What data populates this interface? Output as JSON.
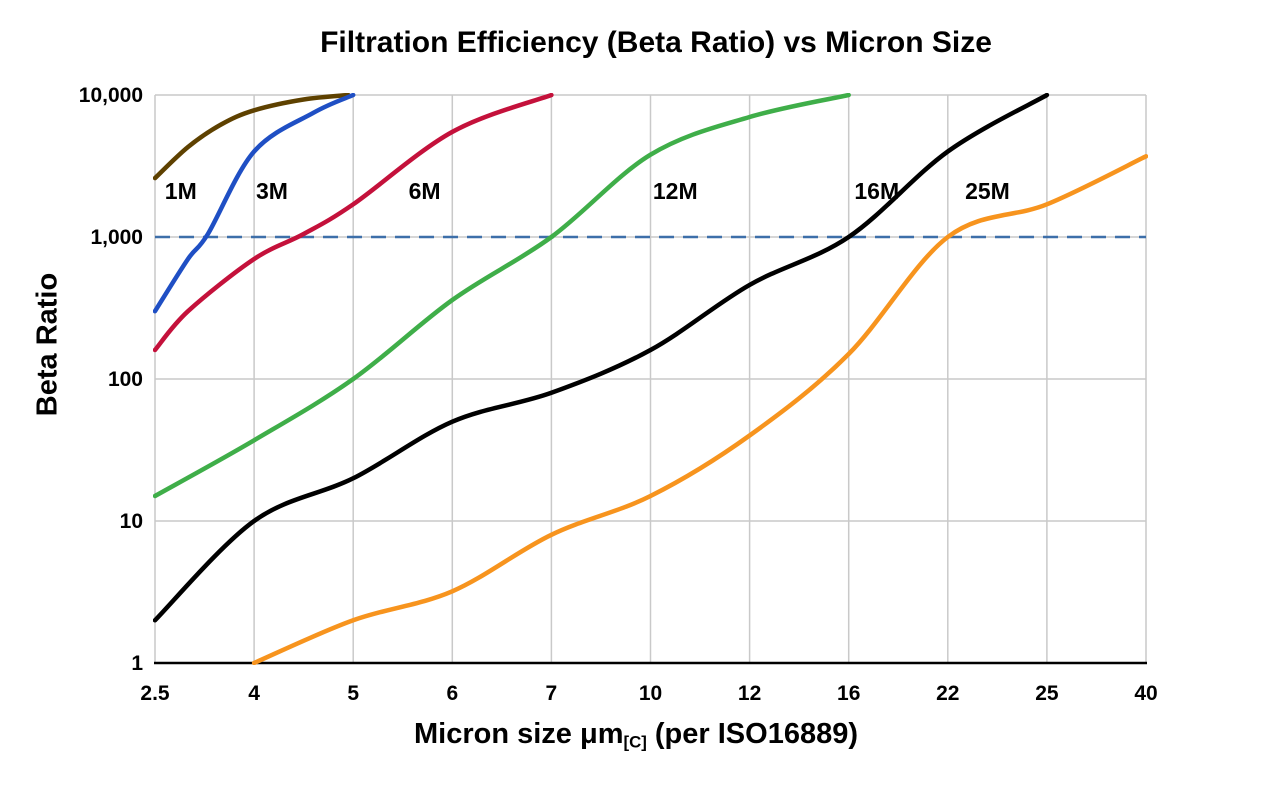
{
  "axes": {
    "x_label_main": "Micron size μm",
    "x_label_sub": "[C]",
    "x_label_suffix": " (per ISO16889)",
    "x_ticks": [
      "2.5",
      "4",
      "5",
      "6",
      "7",
      "10",
      "12",
      "16",
      "22",
      "25",
      "40"
    ],
    "y_ticks": [
      "1",
      "10",
      "100",
      "1,000",
      "10,000"
    ]
  },
  "chart_data": {
    "type": "line",
    "title": "Filtration Efficiency (Beta Ratio) vs Micron Size",
    "xlabel": "Micron size μm[C] (per ISO16889)",
    "ylabel": "Beta Ratio",
    "x_scale": "category-linear",
    "y_scale": "log",
    "x_categories": [
      2.5,
      4,
      5,
      6,
      7,
      10,
      12,
      16,
      22,
      25,
      40
    ],
    "ylim": [
      1,
      10000
    ],
    "grid": true,
    "grid_color": "#c9c9c9",
    "threshold_line": {
      "y": 1000,
      "style": "dashed",
      "color": "#3d6fa9"
    },
    "series": [
      {
        "name": "1M",
        "color": "#5e4100",
        "label_x": 2.89,
        "label_y": 2100,
        "points": [
          [
            2.5,
            2600
          ],
          [
            3,
            4300
          ],
          [
            3.5,
            6200
          ],
          [
            4,
            7800
          ],
          [
            4.5,
            9300
          ],
          [
            4.95,
            10000
          ]
        ]
      },
      {
        "name": "3M",
        "color": "#1f4fc4",
        "label_x": 4.18,
        "label_y": 2100,
        "points": [
          [
            2.5,
            300
          ],
          [
            3,
            700
          ],
          [
            3.3,
            1050
          ],
          [
            4,
            4000
          ],
          [
            4.6,
            7500
          ],
          [
            5,
            10000
          ]
        ]
      },
      {
        "name": "6M",
        "color": "#c4113b",
        "label_x": 5.72,
        "label_y": 2100,
        "points": [
          [
            2.5,
            160
          ],
          [
            3,
            300
          ],
          [
            4,
            700
          ],
          [
            4.5,
            1050
          ],
          [
            5,
            1700
          ],
          [
            6,
            5500
          ],
          [
            7,
            10000
          ]
        ]
      },
      {
        "name": "12M",
        "color": "#3fae49",
        "label_x": 10.5,
        "label_y": 2100,
        "points": [
          [
            2.5,
            15
          ],
          [
            4,
            37
          ],
          [
            5,
            100
          ],
          [
            6,
            360
          ],
          [
            7,
            1000
          ],
          [
            10,
            3800
          ],
          [
            12,
            7000
          ],
          [
            16,
            10000
          ]
        ]
      },
      {
        "name": "16M",
        "color": "#000000",
        "label_x": 17.7,
        "label_y": 2100,
        "points": [
          [
            2.5,
            2
          ],
          [
            4,
            10
          ],
          [
            5,
            20
          ],
          [
            6,
            50
          ],
          [
            7,
            80
          ],
          [
            10,
            160
          ],
          [
            12,
            460
          ],
          [
            16,
            1000
          ],
          [
            22,
            4000
          ],
          [
            25,
            10000
          ]
        ]
      },
      {
        "name": "25M",
        "color": "#f7941e",
        "label_x": 23.2,
        "label_y": 2100,
        "points": [
          [
            4,
            1
          ],
          [
            5,
            2
          ],
          [
            6,
            3.2
          ],
          [
            7,
            8
          ],
          [
            10,
            15
          ],
          [
            12,
            40
          ],
          [
            16,
            150
          ],
          [
            22,
            1000
          ],
          [
            25,
            1700
          ],
          [
            40,
            3700
          ]
        ]
      }
    ]
  }
}
